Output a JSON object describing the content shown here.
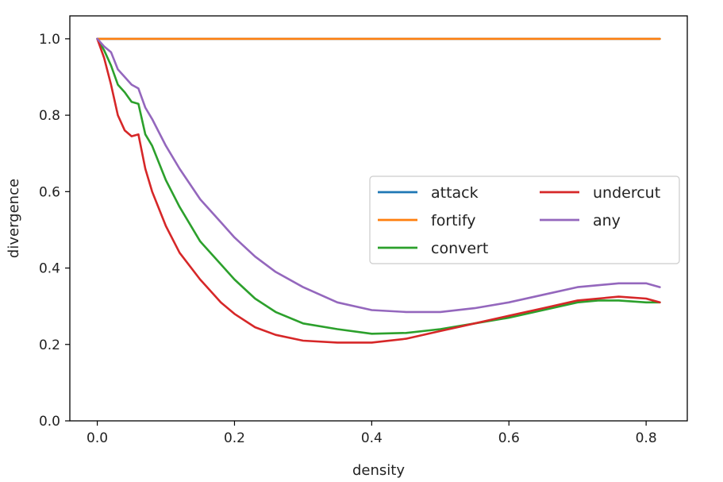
{
  "chart_data": {
    "type": "line",
    "xlabel": "density",
    "ylabel": "divergence",
    "xlim": [
      -0.04,
      0.86
    ],
    "ylim": [
      0.0,
      1.06
    ],
    "xticks": [
      "0.0",
      "0.2",
      "0.4",
      "0.6",
      "0.8"
    ],
    "yticks": [
      "0.0",
      "0.2",
      "0.4",
      "0.6",
      "0.8",
      "1.0"
    ],
    "grid": false,
    "legend": {
      "placement": "center-right",
      "columns": 2
    },
    "series": [
      {
        "name": "attack",
        "color": "#1f77b4",
        "x": [
          0.0,
          0.82
        ],
        "y": [
          1.0,
          1.0
        ]
      },
      {
        "name": "fortify",
        "color": "#ff7f0e",
        "x": [
          0.0,
          0.82
        ],
        "y": [
          1.0,
          1.0
        ]
      },
      {
        "name": "convert",
        "color": "#2ca02c",
        "x": [
          0.0,
          0.01,
          0.02,
          0.03,
          0.04,
          0.05,
          0.06,
          0.07,
          0.08,
          0.1,
          0.12,
          0.15,
          0.18,
          0.2,
          0.23,
          0.26,
          0.3,
          0.35,
          0.4,
          0.45,
          0.5,
          0.55,
          0.6,
          0.65,
          0.7,
          0.73,
          0.76,
          0.8,
          0.82
        ],
        "y": [
          1.0,
          0.97,
          0.93,
          0.88,
          0.86,
          0.835,
          0.83,
          0.75,
          0.72,
          0.63,
          0.56,
          0.47,
          0.41,
          0.37,
          0.32,
          0.285,
          0.255,
          0.24,
          0.228,
          0.23,
          0.24,
          0.255,
          0.27,
          0.29,
          0.31,
          0.315,
          0.315,
          0.31,
          0.31
        ]
      },
      {
        "name": "undercut",
        "color": "#d62728",
        "x": [
          0.0,
          0.01,
          0.02,
          0.03,
          0.04,
          0.05,
          0.06,
          0.07,
          0.08,
          0.1,
          0.12,
          0.15,
          0.18,
          0.2,
          0.23,
          0.26,
          0.3,
          0.35,
          0.4,
          0.45,
          0.5,
          0.55,
          0.6,
          0.65,
          0.7,
          0.73,
          0.76,
          0.8,
          0.82
        ],
        "y": [
          1.0,
          0.95,
          0.88,
          0.8,
          0.76,
          0.745,
          0.75,
          0.66,
          0.6,
          0.51,
          0.44,
          0.37,
          0.31,
          0.28,
          0.245,
          0.225,
          0.21,
          0.205,
          0.205,
          0.215,
          0.235,
          0.255,
          0.275,
          0.295,
          0.315,
          0.32,
          0.325,
          0.32,
          0.31
        ]
      },
      {
        "name": "any",
        "color": "#9467bd",
        "x": [
          0.0,
          0.01,
          0.02,
          0.03,
          0.04,
          0.05,
          0.06,
          0.07,
          0.08,
          0.1,
          0.12,
          0.15,
          0.18,
          0.2,
          0.23,
          0.26,
          0.3,
          0.35,
          0.4,
          0.45,
          0.5,
          0.55,
          0.6,
          0.65,
          0.7,
          0.73,
          0.76,
          0.8,
          0.82
        ],
        "y": [
          1.0,
          0.98,
          0.965,
          0.92,
          0.9,
          0.88,
          0.87,
          0.82,
          0.79,
          0.72,
          0.66,
          0.58,
          0.52,
          0.48,
          0.43,
          0.39,
          0.35,
          0.31,
          0.29,
          0.285,
          0.285,
          0.295,
          0.31,
          0.33,
          0.35,
          0.355,
          0.36,
          0.36,
          0.35
        ]
      }
    ]
  }
}
